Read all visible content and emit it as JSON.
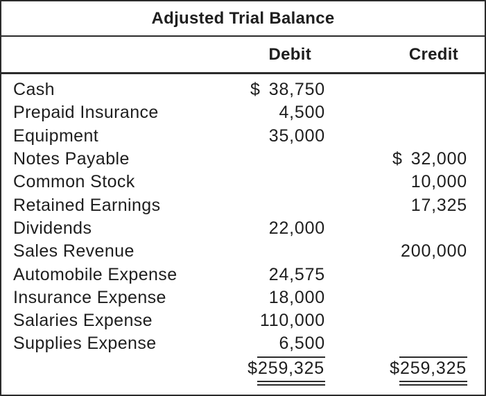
{
  "title": "Adjusted Trial Balance",
  "columns": {
    "account": "",
    "debit": "Debit",
    "credit": "Credit"
  },
  "rows": [
    {
      "account": "Cash",
      "debit": "38,750",
      "debit_dollar": "$"
    },
    {
      "account": "Prepaid Insurance",
      "debit": "4,500"
    },
    {
      "account": "Equipment",
      "debit": "35,000"
    },
    {
      "account": "Notes Payable",
      "credit": "32,000",
      "credit_dollar": "$"
    },
    {
      "account": "Common Stock",
      "credit": "10,000"
    },
    {
      "account": "Retained Earnings",
      "credit": "17,325"
    },
    {
      "account": "Dividends",
      "debit": "22,000"
    },
    {
      "account": "Sales Revenue",
      "credit": "200,000"
    },
    {
      "account": "Automobile Expense",
      "debit": "24,575"
    },
    {
      "account": "Insurance Expense",
      "debit": "18,000"
    },
    {
      "account": "Salaries Expense",
      "debit": "110,000"
    },
    {
      "account": "Supplies Expense",
      "debit": "6,500"
    }
  ],
  "totals": {
    "debit": {
      "currency": "$",
      "value": "259,325"
    },
    "credit": {
      "currency": "$",
      "value": "259,325"
    }
  },
  "colors": {
    "text": "#1e1e1e",
    "border": "#2b2b2b",
    "background": "#ffffff"
  }
}
